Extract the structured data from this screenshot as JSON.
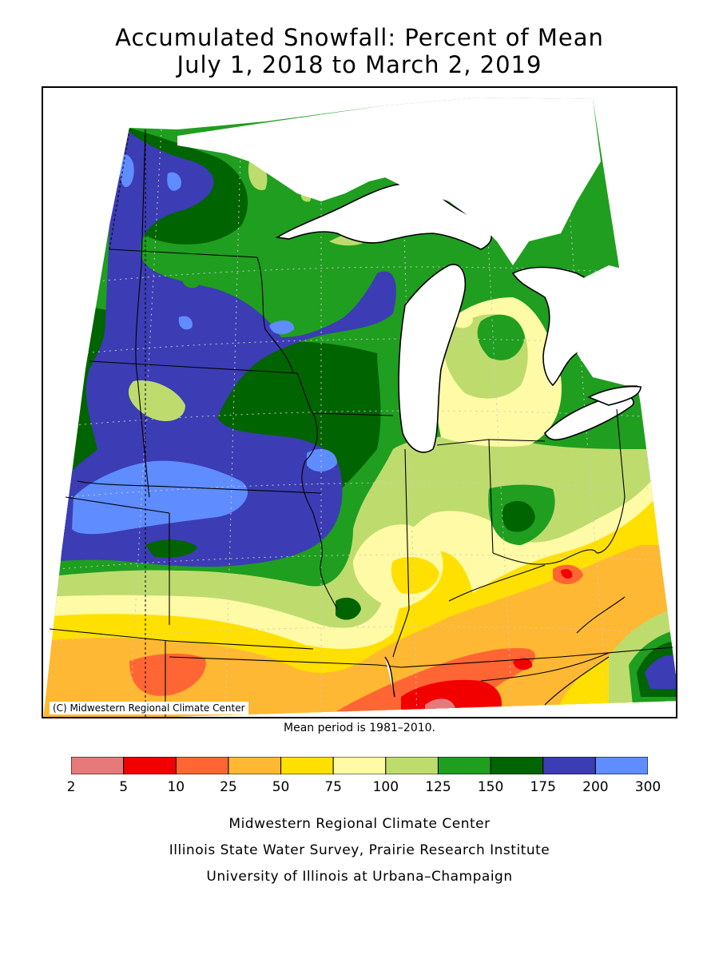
{
  "title": {
    "line1": "Accumulated Snowfall: Percent of Mean",
    "line2": "July 1, 2018 to March 2, 2019"
  },
  "map": {
    "copyright": "(C) Midwestern Regional Climate Center",
    "mean_period": "Mean period is 1981–2010."
  },
  "legend": {
    "ticks": [
      "2",
      "5",
      "10",
      "25",
      "50",
      "75",
      "100",
      "125",
      "150",
      "175",
      "200",
      "300"
    ],
    "colors": [
      "#e67a7a",
      "#f20000",
      "#ff6633",
      "#ffb833",
      "#ffe000",
      "#fffaa5",
      "#bedc6e",
      "#1f9e1f",
      "#006400",
      "#3c3cb4",
      "#5f8cff"
    ]
  },
  "credits": {
    "line1": "Midwestern Regional Climate Center",
    "line2": "Illinois State Water Survey, Prairie Research Institute",
    "line3": "University of Illinois at Urbana–Champaign"
  }
}
